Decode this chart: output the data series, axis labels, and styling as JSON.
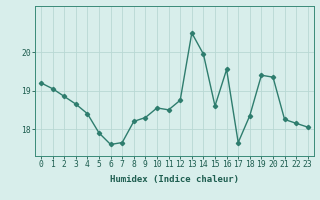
{
  "x": [
    0,
    1,
    2,
    3,
    4,
    5,
    6,
    7,
    8,
    9,
    10,
    11,
    12,
    13,
    14,
    15,
    16,
    17,
    18,
    19,
    20,
    21,
    22,
    23
  ],
  "y": [
    19.2,
    19.05,
    18.85,
    18.65,
    18.4,
    17.9,
    17.6,
    17.65,
    18.2,
    18.3,
    18.55,
    18.5,
    18.75,
    20.5,
    19.95,
    18.6,
    19.55,
    17.65,
    18.35,
    19.4,
    19.35,
    18.25,
    18.15,
    18.05
  ],
  "line_color": "#2e7d6e",
  "marker": "D",
  "marker_size": 2.2,
  "line_width": 1.0,
  "xlabel": "Humidex (Indice chaleur)",
  "ylim": [
    17.3,
    21.2
  ],
  "yticks": [
    18,
    19,
    20
  ],
  "xticks": [
    0,
    1,
    2,
    3,
    4,
    5,
    6,
    7,
    8,
    9,
    10,
    11,
    12,
    13,
    14,
    15,
    16,
    17,
    18,
    19,
    20,
    21,
    22,
    23
  ],
  "bg_color": "#d8eeeb",
  "grid_color": "#b8d8d4",
  "axis_fontsize": 6.5,
  "tick_fontsize": 5.8
}
